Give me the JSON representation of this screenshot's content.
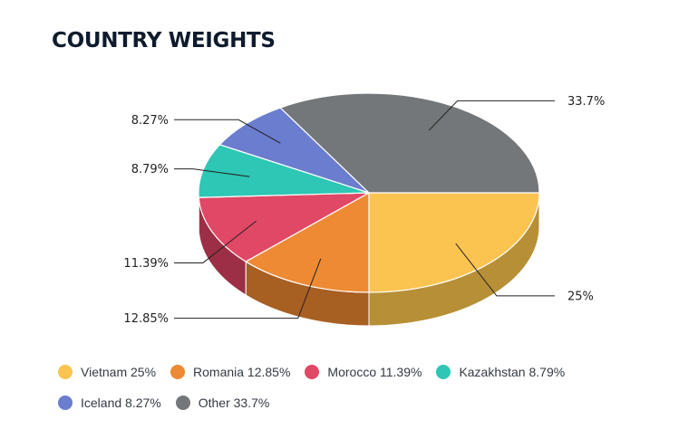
{
  "title": "COUNTRY WEIGHTS",
  "chart_data": {
    "type": "pie",
    "title": "COUNTRY WEIGHTS",
    "slices": [
      {
        "name": "Vietnam",
        "value": 25,
        "label": "25%",
        "legend": "Vietnam 25%",
        "color": "#fbc350",
        "side_color": "#b78f36"
      },
      {
        "name": "Romania",
        "value": 12.85,
        "label": "12.85%",
        "legend": "Romania 12.85%",
        "color": "#ed8a33",
        "side_color": "#a85f22"
      },
      {
        "name": "Morocco",
        "value": 11.39,
        "label": "11.39%",
        "legend": "Morocco 11.39%",
        "color": "#e04866",
        "side_color": "#9c2f45"
      },
      {
        "name": "Kazakhstan",
        "value": 8.79,
        "label": "8.79%",
        "legend": "Kazakhstan 8.79%",
        "color": "#2ec6b4",
        "side_color": "#1f8b7e"
      },
      {
        "name": "Iceland",
        "value": 8.27,
        "label": "8.27%",
        "legend": "Iceland 8.27%",
        "color": "#6b7dcf",
        "side_color": "#4a5791"
      },
      {
        "name": "Other",
        "value": 33.7,
        "label": "33.7%",
        "legend": "Other 33.7%",
        "color": "#737779",
        "side_color": "#4f5254"
      }
    ],
    "style": "3d",
    "legend_position": "bottom"
  }
}
